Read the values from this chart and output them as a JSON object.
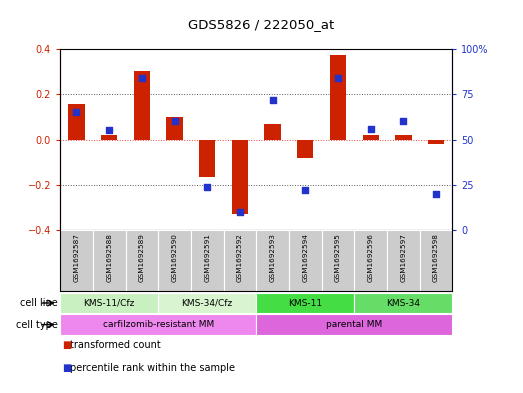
{
  "title": "GDS5826 / 222050_at",
  "samples": [
    "GSM1692587",
    "GSM1692588",
    "GSM1692589",
    "GSM1692590",
    "GSM1692591",
    "GSM1692592",
    "GSM1692593",
    "GSM1692594",
    "GSM1692595",
    "GSM1692596",
    "GSM1692597",
    "GSM1692598"
  ],
  "transformed_count": [
    0.155,
    0.02,
    0.305,
    0.1,
    -0.165,
    -0.33,
    0.07,
    -0.08,
    0.375,
    0.02,
    0.02,
    -0.02
  ],
  "percentile_rank": [
    65,
    55,
    84,
    60,
    24,
    10,
    72,
    22,
    84,
    56,
    60,
    20
  ],
  "cell_lines": [
    {
      "label": "KMS-11/Cfz",
      "start": 0,
      "end": 3,
      "color": "#c8f0c0"
    },
    {
      "label": "KMS-34/Cfz",
      "start": 3,
      "end": 6,
      "color": "#d8f5d0"
    },
    {
      "label": "KMS-11",
      "start": 6,
      "end": 9,
      "color": "#44dd44"
    },
    {
      "label": "KMS-34",
      "start": 9,
      "end": 12,
      "color": "#66dd66"
    }
  ],
  "cell_types": [
    {
      "label": "carfilzomib-resistant MM",
      "start": 0,
      "end": 6,
      "color": "#ee88ee"
    },
    {
      "label": "parental MM",
      "start": 6,
      "end": 12,
      "color": "#dd66dd"
    }
  ],
  "ylim_left": [
    -0.4,
    0.4
  ],
  "ylim_right": [
    0,
    100
  ],
  "yticks_left": [
    -0.4,
    -0.2,
    0.0,
    0.2,
    0.4
  ],
  "yticks_right": [
    0,
    25,
    50,
    75,
    100
  ],
  "yticklabels_right": [
    "0",
    "25",
    "50",
    "75",
    "100%"
  ],
  "bar_color": "#cc2200",
  "dot_color": "#2233cc",
  "zero_line_color": "#ee4444",
  "dotted_line_color": "#555555",
  "sample_bg_color": "#cccccc",
  "legend_items": [
    {
      "label": "transformed count",
      "color": "#cc2200"
    },
    {
      "label": "percentile rank within the sample",
      "color": "#2233cc"
    }
  ]
}
